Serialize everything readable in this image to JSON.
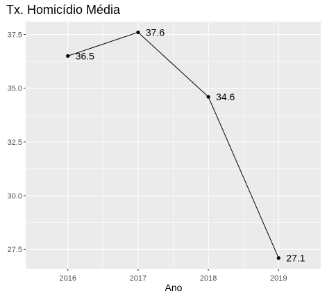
{
  "chart_data": {
    "type": "line",
    "title": "Tx. Homicídio Média",
    "xlabel": "Ano",
    "ylabel": "",
    "x": [
      "2016",
      "2017",
      "2018",
      "2019"
    ],
    "series": [
      {
        "values": [
          36.5,
          37.6,
          34.6,
          27.1
        ],
        "labels": [
          "36.5",
          "37.6",
          "34.6",
          "27.1"
        ]
      }
    ],
    "ylim": [
      26.6,
      38.1
    ],
    "yticks": [
      27.5,
      30.0,
      32.5,
      35.0,
      37.5
    ],
    "ytick_labels": [
      "27.5",
      "30.0",
      "32.5",
      "35.0",
      "37.5"
    ],
    "grid": true,
    "legend": "none",
    "colors": {
      "panel": "#ebebeb",
      "grid": "#ffffff",
      "line": "#000000",
      "point": "#000000"
    }
  }
}
